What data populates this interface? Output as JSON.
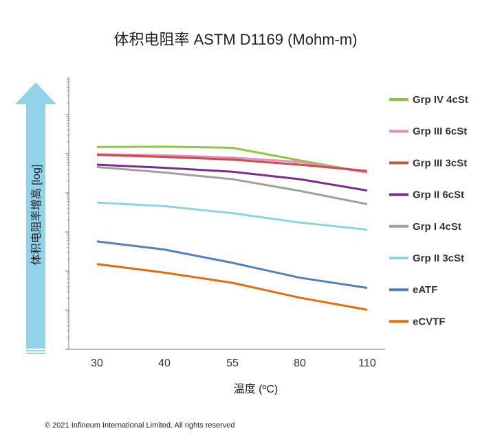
{
  "chart_data": {
    "type": "line",
    "title": "体积电阻率  ASTM D1169 (Mohm-m)",
    "xlabel": "温度 (ºC)",
    "ylabel": "体积电阻率增高  [log]",
    "x": [
      "30",
      "40",
      "55",
      "80",
      "110"
    ],
    "y_scale": "log",
    "y_tick_labels_shown": false,
    "grid": false,
    "legend_position": "right",
    "series": [
      {
        "name": "Grp IV 4cSt",
        "color": "#8dc63f",
        "values": [
          2.17,
          2.18,
          2.15,
          1.83,
          1.52
        ]
      },
      {
        "name": "Grp III 6cSt",
        "color": "#e58cbb",
        "values": [
          1.99,
          1.96,
          1.9,
          1.79,
          1.52
        ]
      },
      {
        "name": "Grp III 3cSt",
        "color": "#cc4b4b",
        "values": [
          1.97,
          1.92,
          1.85,
          1.72,
          1.56
        ]
      },
      {
        "name": "Grp II 6cSt",
        "color": "#7b2b8e",
        "values": [
          1.72,
          1.64,
          1.54,
          1.35,
          1.06
        ]
      },
      {
        "name": "Grp I 4cSt",
        "color": "#a0a0a0",
        "values": [
          1.66,
          1.52,
          1.35,
          1.05,
          0.71
        ]
      },
      {
        "name": "Grp II 3cSt",
        "color": "#8dd3e0",
        "values": [
          0.75,
          0.66,
          0.48,
          0.24,
          0.06
        ]
      },
      {
        "name": "eATF",
        "color": "#4f81bd",
        "values": [
          -0.24,
          -0.45,
          -0.79,
          -1.17,
          -1.43
        ]
      },
      {
        "name": "eCVTF",
        "color": "#e36c0a",
        "values": [
          -0.82,
          -1.04,
          -1.3,
          -1.68,
          -1.99
        ]
      }
    ]
  },
  "footer": {
    "copyright": "© 2021 Infineum International Limited. All rights reserved"
  },
  "decor": {
    "arrow_color": "#91d3e8"
  }
}
